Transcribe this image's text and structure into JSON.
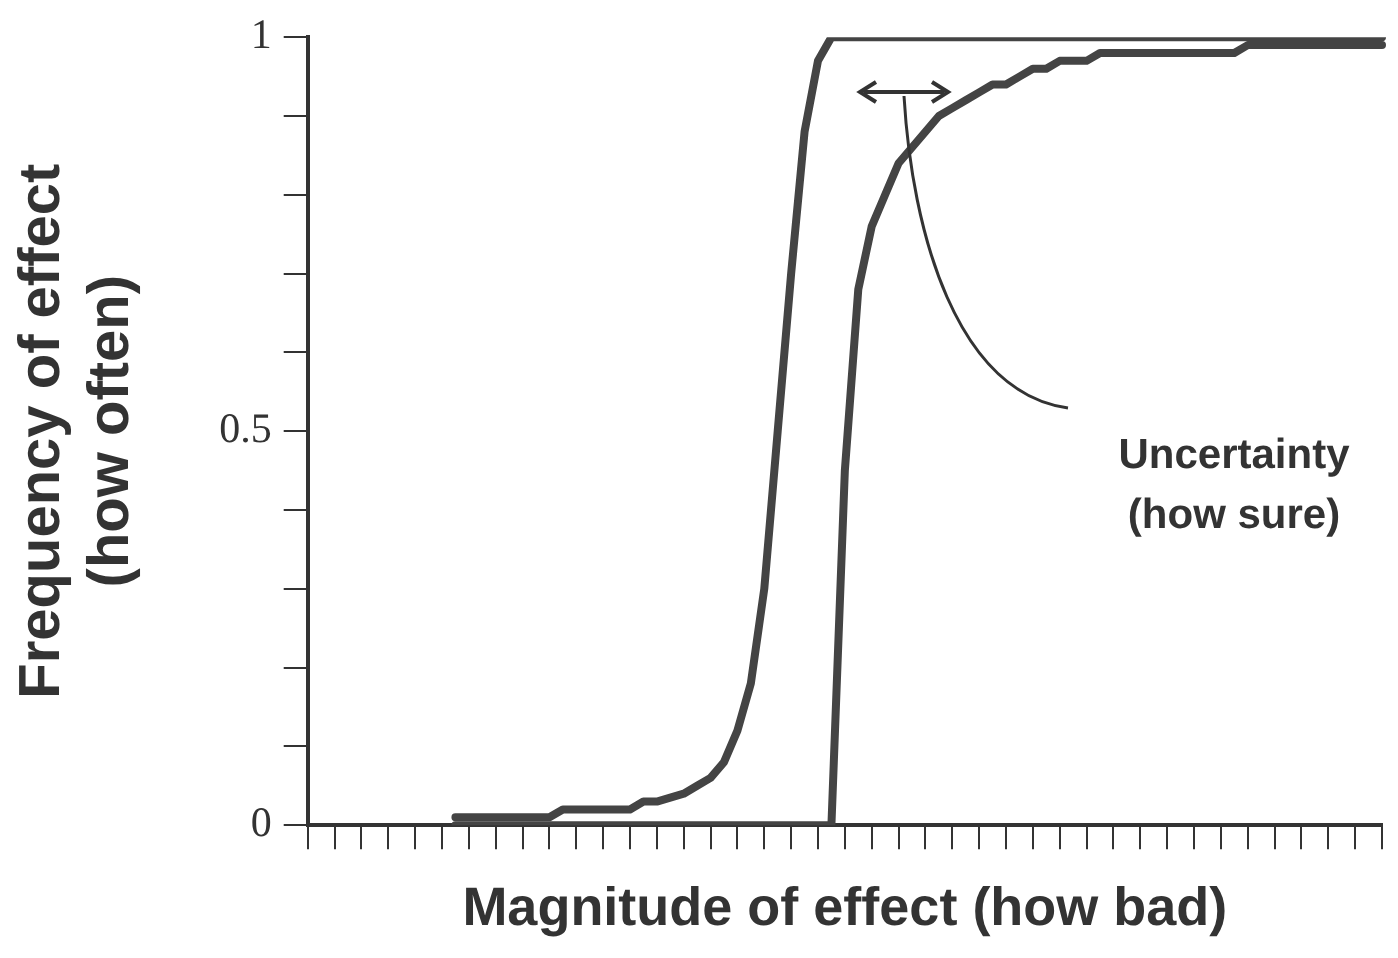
{
  "chart_data": {
    "type": "line",
    "xlabel": "Magnitude of effect (how bad)",
    "ylabel": "Frequency of effect (how often)",
    "categories": [
      null,
      null,
      null,
      null,
      null,
      null,
      null,
      null,
      null,
      null,
      null,
      null,
      null,
      null,
      null,
      null,
      null,
      null,
      null,
      null,
      null,
      null,
      null,
      null,
      null,
      null,
      null,
      null,
      null,
      null,
      null,
      null,
      null,
      null,
      null,
      null,
      null,
      null,
      null,
      null,
      null,
      null,
      null,
      null,
      null,
      null,
      null,
      null,
      null,
      null,
      null,
      null,
      null,
      null,
      null,
      null,
      null,
      null,
      null,
      null,
      null,
      null,
      null,
      null,
      null,
      null,
      null,
      null,
      null,
      null,
      null,
      null,
      null,
      null,
      null,
      null,
      null,
      null,
      null,
      null,
      null
    ],
    "series": [
      {
        "color": "#444444",
        "values": [
          null,
          null,
          null,
          null,
          null,
          null,
          null,
          null,
          null,
          null,
          null,
          0.01,
          0.01,
          0.01,
          0.01,
          0.01,
          0.01,
          0.01,
          0.01,
          0.02,
          0.02,
          0.02,
          0.02,
          0.02,
          0.02,
          0.03,
          0.03,
          0.035,
          0.04,
          0.05,
          0.06,
          0.08,
          0.12,
          0.18,
          0.3,
          0.5,
          0.7,
          0.88,
          0.97,
          1,
          1,
          1,
          1,
          1,
          1,
          1,
          1,
          1,
          1,
          1,
          1,
          1,
          1,
          1,
          1,
          1,
          1,
          1,
          1,
          1,
          1,
          1,
          1,
          1,
          1,
          1,
          1,
          1,
          1,
          1,
          1,
          1,
          1,
          1,
          1,
          1,
          1,
          1,
          1,
          1,
          1
        ]
      },
      {
        "color": "#444444",
        "values": [
          null,
          null,
          null,
          null,
          null,
          null,
          null,
          null,
          null,
          null,
          null,
          0,
          0,
          0,
          0,
          0,
          0,
          0,
          0,
          0,
          0,
          0,
          0,
          0,
          0,
          0,
          0,
          0,
          0,
          0,
          0,
          0,
          0,
          0,
          0,
          0,
          0,
          0,
          0,
          0,
          0.45,
          0.68,
          0.76,
          0.8,
          0.84,
          0.86,
          0.88,
          0.9,
          0.91,
          0.92,
          0.93,
          0.94,
          0.94,
          0.95,
          0.96,
          0.96,
          0.97,
          0.97,
          0.97,
          0.98,
          0.98,
          0.98,
          0.98,
          0.98,
          0.98,
          0.98,
          0.98,
          0.98,
          0.98,
          0.98,
          0.99,
          0.99,
          0.99,
          0.99,
          0.99,
          0.99,
          0.99,
          0.99,
          0.99,
          0.99,
          0.99
        ]
      }
    ],
    "ylim": [
      0,
      1
    ],
    "yticks": [
      0,
      {
        "value": 0.1,
        "label": null
      },
      {
        "value": 0.2,
        "label": null
      },
      {
        "value": 0.3,
        "label": null
      },
      {
        "value": 0.4,
        "label": null
      },
      0.5,
      {
        "value": 0.6,
        "label": null
      },
      {
        "value": 0.7,
        "label": null
      },
      {
        "value": 0.8,
        "label": null
      },
      {
        "value": 0.9,
        "label": null
      },
      1
    ],
    "tick_labels": "y",
    "grid": false,
    "legend": false,
    "marker": "none",
    "line_style": "solid",
    "annotations": [
      "Uncertainty (how sure)"
    ]
  }
}
